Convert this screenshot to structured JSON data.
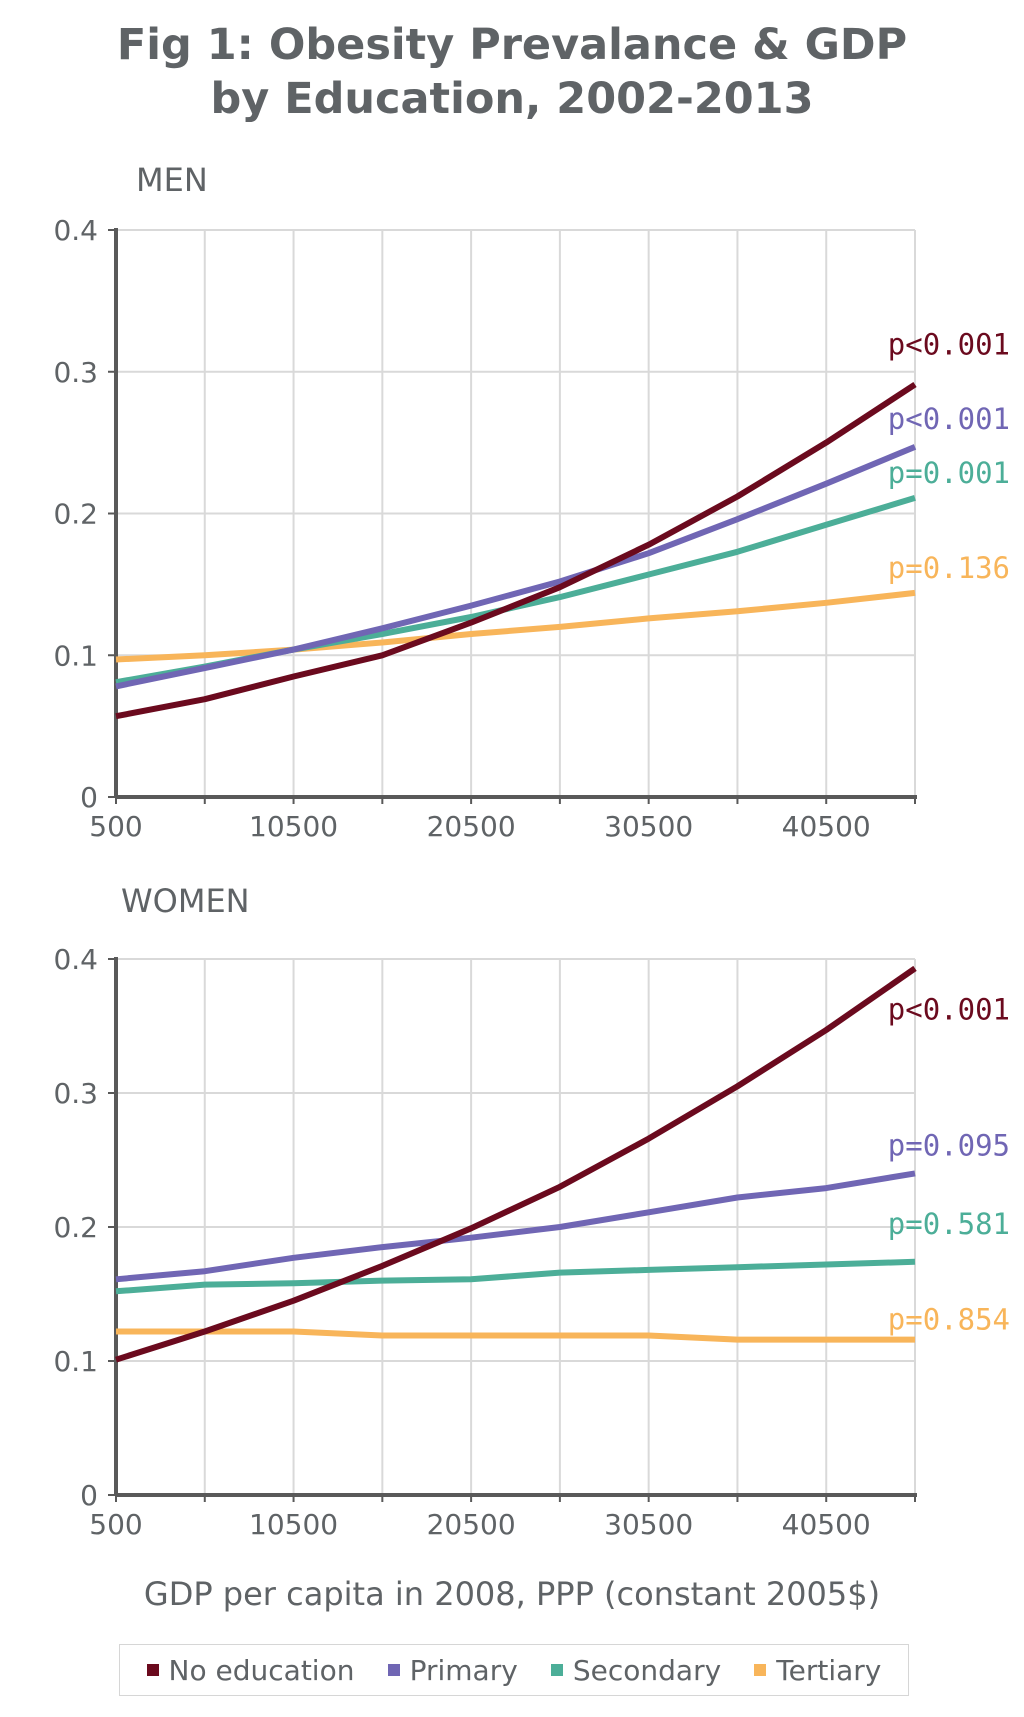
{
  "title_line1": "Fig 1: Obesity Prevalance & GDP",
  "title_line2": "by Education, 2002-2013",
  "x_axis_title": "GDP per capita in 2008, PPP (constant 2005$)",
  "colors": {
    "no_education": "#6b0a1e",
    "primary": "#7066b4",
    "secondary": "#4cae98",
    "tertiary": "#f8b55a",
    "grid": "#d9d9d9",
    "axis": "#595959"
  },
  "legend": [
    {
      "label": "No education",
      "color": "#6b0a1e"
    },
    {
      "label": "Primary",
      "color": "#7066b4"
    },
    {
      "label": "Secondary",
      "color": "#4cae98"
    },
    {
      "label": "Tertiary",
      "color": "#f8b55a"
    }
  ],
  "chart_data": [
    {
      "type": "line",
      "panel_label": "MEN",
      "x": [
        500,
        5500,
        10500,
        15500,
        20500,
        25500,
        30500,
        35500,
        40500,
        45500
      ],
      "x_tick_labels": [
        "500",
        "10500",
        "20500",
        "30500",
        "40500"
      ],
      "y_tick_labels": [
        "0",
        "0.1",
        "0.2",
        "0.3",
        "0.4"
      ],
      "xlim": [
        500,
        45500
      ],
      "ylim": [
        0,
        0.4
      ],
      "grid": true,
      "series": [
        {
          "name": "No education",
          "key": "no_education",
          "p_label": "p<0.001",
          "values": [
            0.057,
            0.069,
            0.085,
            0.1,
            0.123,
            0.148,
            0.178,
            0.212,
            0.25,
            0.291
          ]
        },
        {
          "name": "Primary",
          "key": "primary",
          "p_label": "p<0.001",
          "values": [
            0.078,
            0.091,
            0.104,
            0.119,
            0.135,
            0.152,
            0.172,
            0.196,
            0.221,
            0.247
          ]
        },
        {
          "name": "Secondary",
          "key": "secondary",
          "p_label": "p=0.001",
          "values": [
            0.081,
            0.092,
            0.104,
            0.115,
            0.127,
            0.141,
            0.157,
            0.173,
            0.192,
            0.211
          ]
        },
        {
          "name": "Tertiary",
          "key": "tertiary",
          "p_label": "p=0.136",
          "values": [
            0.097,
            0.1,
            0.104,
            0.109,
            0.115,
            0.12,
            0.126,
            0.131,
            0.137,
            0.144
          ]
        }
      ]
    },
    {
      "type": "line",
      "panel_label": "WOMEN",
      "x": [
        500,
        5500,
        10500,
        15500,
        20500,
        25500,
        30500,
        35500,
        40500,
        45500
      ],
      "x_tick_labels": [
        "500",
        "10500",
        "20500",
        "30500",
        "40500"
      ],
      "y_tick_labels": [
        "0",
        "0.1",
        "0.2",
        "0.3",
        "0.4"
      ],
      "xlim": [
        500,
        45500
      ],
      "ylim": [
        0,
        0.4
      ],
      "grid": true,
      "series": [
        {
          "name": "No education",
          "key": "no_education",
          "p_label": "p<0.001",
          "values": [
            0.101,
            0.122,
            0.145,
            0.171,
            0.199,
            0.23,
            0.266,
            0.305,
            0.347,
            0.393
          ]
        },
        {
          "name": "Primary",
          "key": "primary",
          "p_label": "p=0.095",
          "values": [
            0.161,
            0.167,
            0.177,
            0.185,
            0.192,
            0.2,
            0.211,
            0.222,
            0.229,
            0.24
          ]
        },
        {
          "name": "Secondary",
          "key": "secondary",
          "p_label": "p=0.581",
          "values": [
            0.152,
            0.157,
            0.158,
            0.16,
            0.161,
            0.166,
            0.168,
            0.17,
            0.172,
            0.174
          ]
        },
        {
          "name": "Tertiary",
          "key": "tertiary",
          "p_label": "p=0.854",
          "values": [
            0.122,
            0.122,
            0.122,
            0.119,
            0.119,
            0.119,
            0.119,
            0.116,
            0.116,
            0.116
          ]
        }
      ]
    }
  ]
}
